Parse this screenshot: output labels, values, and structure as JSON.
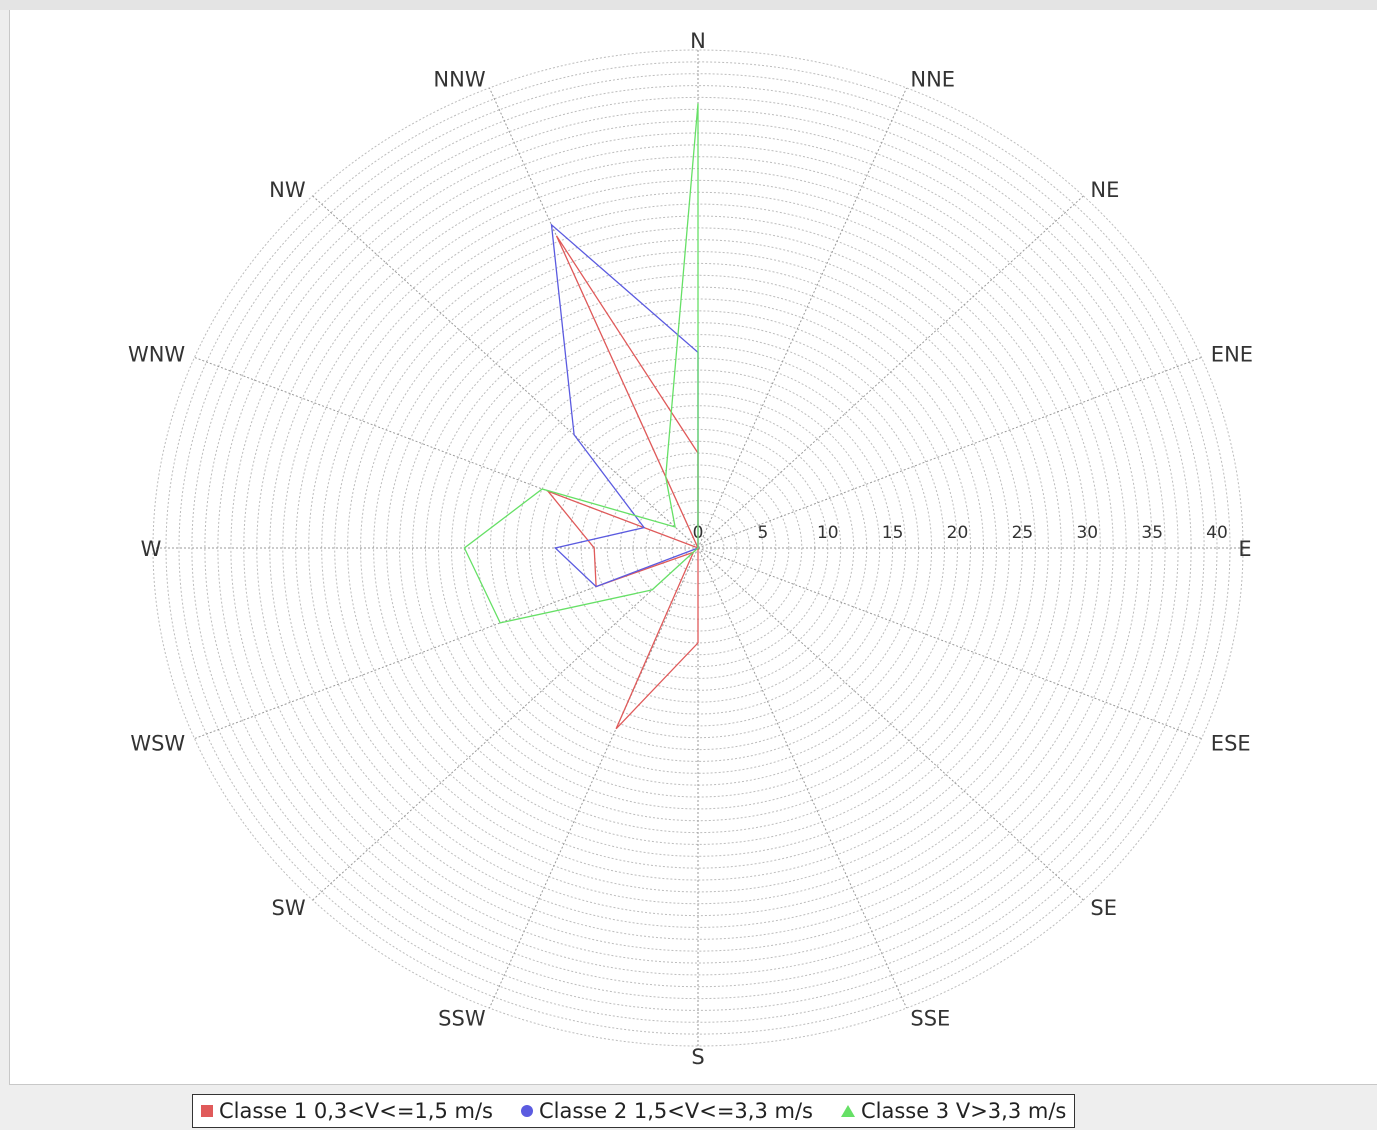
{
  "chart_data": {
    "type": "polar-line",
    "title": "",
    "directions": [
      "N",
      "NNE",
      "NE",
      "ENE",
      "E",
      "ESE",
      "SE",
      "SSE",
      "S",
      "SSW",
      "SW",
      "WSW",
      "W",
      "WNW",
      "NW",
      "NNW"
    ],
    "radial_ticks": [
      "0",
      "5",
      "10",
      "15",
      "20",
      "25",
      "30",
      "35",
      "40"
    ],
    "radial_range": [
      0,
      42
    ],
    "grid": true,
    "legend_position": "bottom",
    "series": [
      {
        "name": "Classe 1 0,3<V<=1,5 m/s",
        "color": "#e05a5a",
        "marker": "square",
        "values": [
          8,
          0,
          0,
          0,
          0,
          0,
          0,
          0,
          8,
          16.5,
          0.5,
          8.5,
          8,
          12.5,
          0,
          28.5
        ]
      },
      {
        "name": "Classe 2 1,5<V<=3,3 m/s",
        "color": "#5b5be0",
        "marker": "circle",
        "values": [
          16.5,
          0,
          0,
          0,
          0,
          0,
          0,
          0,
          0,
          0,
          0,
          8.5,
          11,
          4.5,
          13.5,
          29.5
        ]
      },
      {
        "name": "Classe 3 V>3,3 m/s",
        "color": "#66e066",
        "marker": "triangle",
        "values": [
          37.5,
          0,
          0,
          0,
          0,
          0,
          0,
          0,
          0,
          0,
          5,
          16.5,
          18,
          13,
          2.5,
          6.5
        ]
      }
    ]
  }
}
